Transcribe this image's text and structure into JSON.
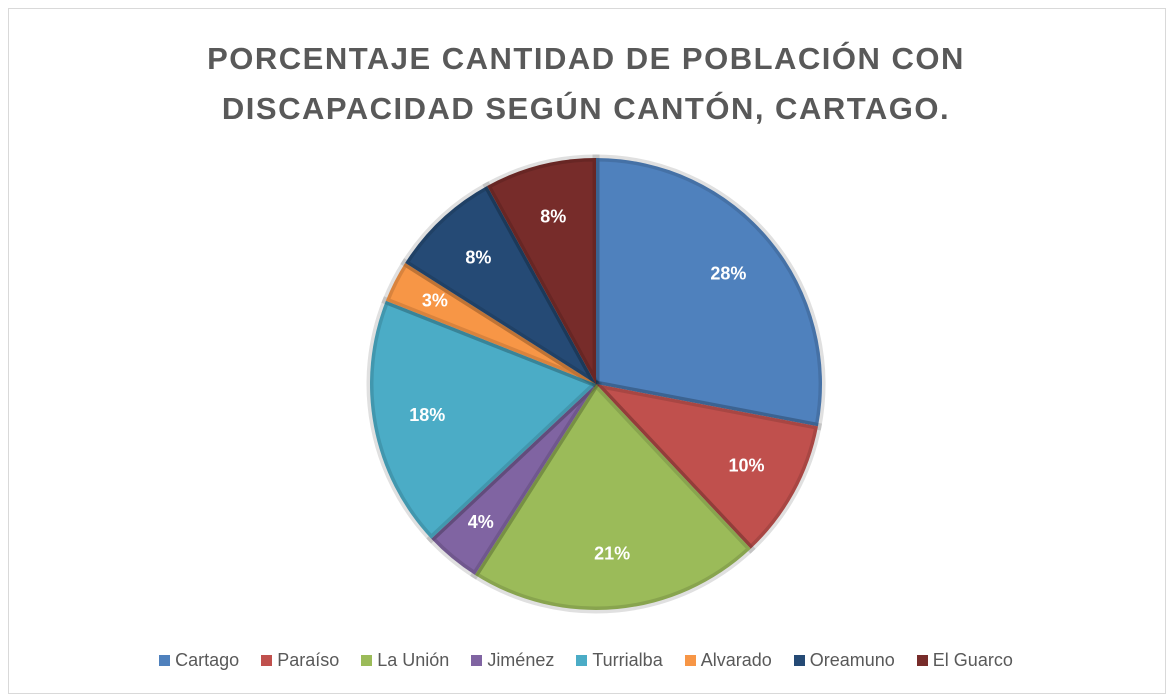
{
  "chart_data": {
    "type": "pie",
    "title": "PORCENTAJE CANTIDAD DE POBLACIÓN CON DISCAPACIDAD SEGÚN CANTÓN, CARTAGO.",
    "categories": [
      "Cartago",
      "Paraíso",
      "La Unión",
      "Jiménez",
      "Turrialba",
      "Alvarado",
      "Oreamuno",
      "El Guarco"
    ],
    "values": [
      28,
      10,
      21,
      4,
      18,
      3,
      8,
      8
    ],
    "value_labels": [
      "28%",
      "10%",
      "21%",
      "4%",
      "18%",
      "3%",
      "8%",
      "8%"
    ],
    "colors": [
      "#4f81bd",
      "#c0504d",
      "#9bbb59",
      "#8064a2",
      "#4bacc6",
      "#f79646",
      "#254a75",
      "#772c2a"
    ],
    "legend": "bottom"
  }
}
